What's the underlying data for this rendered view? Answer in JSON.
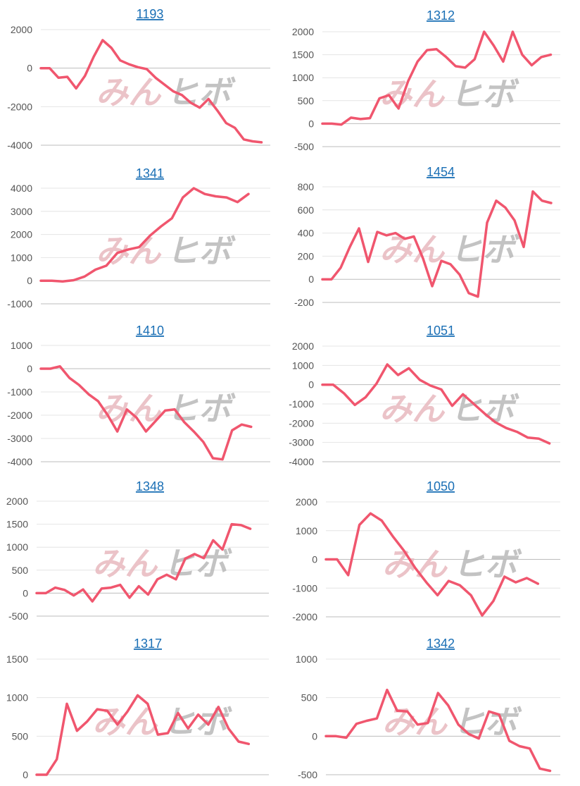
{
  "watermark": {
    "part1": "みん",
    "part2": "ヒボ"
  },
  "colors": {
    "line": "#f0566e",
    "title": "#1a6fb5",
    "grid": "#e4e4e4",
    "axis": "#bdbdbd",
    "tick": "#555555"
  },
  "chart_data": [
    {
      "type": "line",
      "title": "1193",
      "yticks": [
        2000,
        0,
        -2000,
        -4000
      ],
      "ylim": [
        -4000,
        2000
      ],
      "series": [
        {
          "values": [
            0,
            0,
            -500,
            -450,
            -1050,
            -400,
            600,
            1450,
            1050,
            400,
            200,
            50,
            -50,
            -500,
            -850,
            -1200,
            -1400,
            -1800,
            -2050,
            -1600,
            -2200,
            -2850,
            -3100,
            -3700,
            -3800,
            -3850
          ]
        }
      ]
    },
    {
      "type": "line",
      "title": "1312",
      "yticks": [
        2000,
        1500,
        1000,
        500,
        0,
        -500
      ],
      "ylim": [
        -500,
        2000
      ],
      "series": [
        {
          "values": [
            0,
            0,
            -20,
            130,
            100,
            120,
            550,
            620,
            330,
            920,
            1350,
            1600,
            1620,
            1450,
            1250,
            1220,
            1400,
            2000,
            1700,
            1350,
            2000,
            1500,
            1270,
            1450,
            1500
          ]
        }
      ]
    },
    {
      "type": "line",
      "title": "1341",
      "yticks": [
        4000,
        3000,
        2000,
        1000,
        0,
        -1000
      ],
      "ylim": [
        -1000,
        4000
      ],
      "series": [
        {
          "values": [
            0,
            0,
            -30,
            20,
            180,
            480,
            650,
            1200,
            1350,
            1450,
            1950,
            2350,
            2700,
            3600,
            4000,
            3750,
            3650,
            3600,
            3400,
            3750
          ]
        }
      ]
    },
    {
      "type": "line",
      "title": "1454",
      "yticks": [
        800,
        600,
        400,
        200,
        0,
        -200
      ],
      "ylim": [
        -200,
        800
      ],
      "series": [
        {
          "values": [
            0,
            0,
            100,
            280,
            440,
            150,
            410,
            380,
            400,
            350,
            370,
            180,
            -60,
            160,
            130,
            40,
            -120,
            -150,
            490,
            680,
            620,
            510,
            280,
            760,
            680,
            660
          ]
        }
      ]
    },
    {
      "type": "line",
      "title": "1410",
      "yticks": [
        1000,
        0,
        -1000,
        -2000,
        -3000,
        -4000
      ],
      "ylim": [
        -4000,
        1000
      ],
      "series": [
        {
          "values": [
            0,
            0,
            100,
            -400,
            -700,
            -1100,
            -1400,
            -2000,
            -2700,
            -1750,
            -2100,
            -2700,
            -2250,
            -1800,
            -1750,
            -2300,
            -2700,
            -3150,
            -3850,
            -3900,
            -2650,
            -2400,
            -2500
          ]
        }
      ]
    },
    {
      "type": "line",
      "title": "1051",
      "yticks": [
        2000,
        1000,
        0,
        -1000,
        -2000,
        -3000,
        -4000
      ],
      "ylim": [
        -4000,
        2000
      ],
      "series": [
        {
          "values": [
            0,
            0,
            -450,
            -1050,
            -650,
            50,
            1050,
            500,
            850,
            250,
            -50,
            -250,
            -1100,
            -500,
            -1000,
            -1500,
            -1950,
            -2250,
            -2450,
            -2750,
            -2800,
            -3050
          ]
        }
      ]
    },
    {
      "type": "line",
      "title": "1348",
      "yticks": [
        2000,
        1500,
        1000,
        500,
        0,
        -500
      ],
      "ylim": [
        -500,
        2000
      ],
      "series": [
        {
          "values": [
            0,
            0,
            120,
            70,
            -50,
            80,
            -180,
            100,
            120,
            180,
            -100,
            150,
            -30,
            300,
            400,
            300,
            750,
            850,
            760,
            1150,
            950,
            1500,
            1480,
            1400
          ]
        }
      ]
    },
    {
      "type": "line",
      "title": "1050",
      "yticks": [
        2000,
        1000,
        0,
        -1000,
        -2000
      ],
      "ylim": [
        -2000,
        2000
      ],
      "series": [
        {
          "values": [
            0,
            0,
            -550,
            1200,
            1600,
            1350,
            800,
            300,
            -300,
            -800,
            -1250,
            -750,
            -900,
            -1250,
            -1950,
            -1450,
            -600,
            -800,
            -650,
            -850
          ]
        }
      ]
    },
    {
      "type": "line",
      "title": "1317",
      "yticks": [
        1500,
        1000,
        500,
        0
      ],
      "ylim": [
        0,
        1500
      ],
      "series": [
        {
          "values": [
            0,
            0,
            200,
            920,
            570,
            690,
            850,
            830,
            650,
            820,
            1030,
            920,
            520,
            540,
            800,
            600,
            780,
            650,
            880,
            600,
            430,
            400
          ]
        }
      ]
    },
    {
      "type": "line",
      "title": "1342",
      "yticks": [
        1000,
        500,
        0,
        -500
      ],
      "ylim": [
        -500,
        1000
      ],
      "series": [
        {
          "values": [
            0,
            0,
            -20,
            160,
            200,
            230,
            600,
            330,
            320,
            150,
            170,
            560,
            400,
            150,
            30,
            -30,
            320,
            280,
            -60,
            -130,
            -160,
            -420,
            -450
          ]
        }
      ]
    }
  ]
}
